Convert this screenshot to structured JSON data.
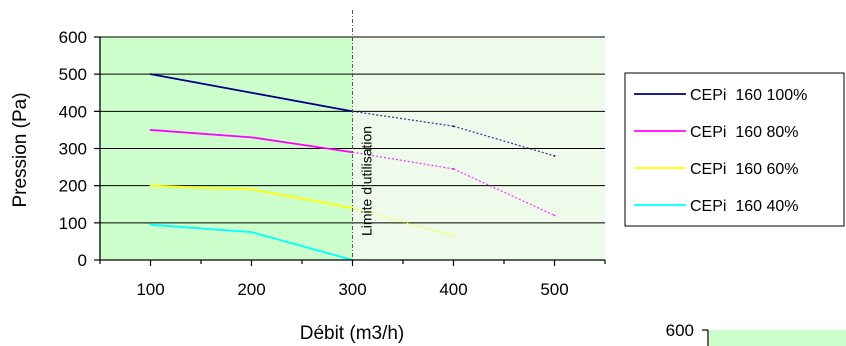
{
  "chart_data": {
    "type": "line",
    "xlabel": "Débit (m3/h)",
    "ylabel": "Pression (Pa)",
    "xlim": [
      50,
      550
    ],
    "ylim": [
      0,
      600
    ],
    "x_ticks": [
      100,
      200,
      300,
      400,
      500
    ],
    "y_ticks": [
      0,
      100,
      200,
      300,
      400,
      500,
      600
    ],
    "grid": "horizontal",
    "legend_position": "right",
    "usage_limit": {
      "x": 300,
      "label": "Limite d'utilisation"
    },
    "colors": {
      "usable_region": "#ccffcc",
      "beyond_limit_region": "#eefaea",
      "limit_line": "#555555"
    },
    "series": [
      {
        "name": "CEPi  160 100%",
        "color": "#000080",
        "x": [
          100,
          200,
          300,
          400,
          500
        ],
        "y": [
          500,
          450,
          400,
          360,
          280
        ]
      },
      {
        "name": "CEPi  160 80%",
        "color": "#ff00ff",
        "x": [
          100,
          200,
          300,
          400,
          500
        ],
        "y": [
          350,
          330,
          290,
          245,
          120
        ]
      },
      {
        "name": "CEPi  160 60%",
        "color": "#ffff00",
        "x": [
          100,
          200,
          300,
          400
        ],
        "y": [
          200,
          190,
          140,
          65
        ]
      },
      {
        "name": "CEPi  160 40%",
        "color": "#00ffff",
        "x": [
          100,
          200,
          300
        ],
        "y": [
          95,
          75,
          0
        ]
      }
    ]
  },
  "second_chart_fragment": {
    "visible_tick": "600",
    "fill_color": "#ccffcc"
  }
}
